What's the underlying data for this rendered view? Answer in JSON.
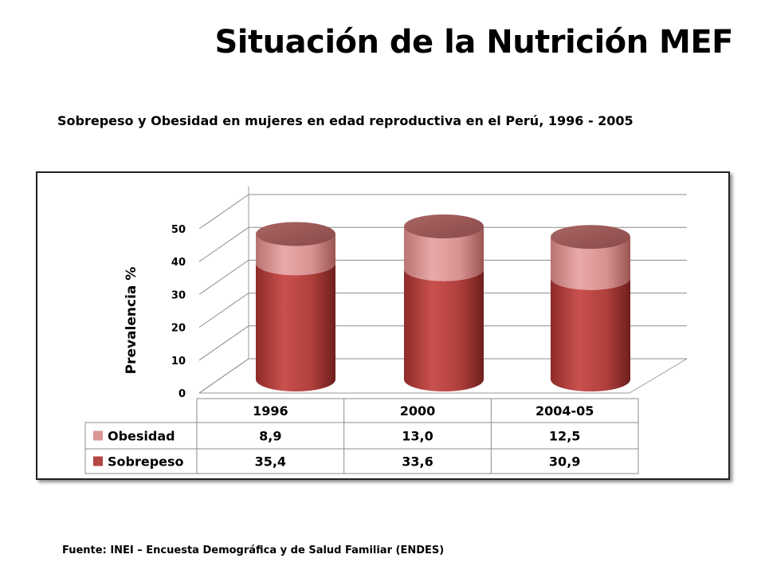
{
  "slide_title": "Situación de la Nutrición MEF",
  "source": "Fuente: INEI – Encuesta Demográfica y de Salud Familiar (ENDES)",
  "chart_data": {
    "type": "bar",
    "stacked": true,
    "style": "3d-cylinder",
    "title": "Sobrepeso y Obesidad en mujeres en edad reproductiva en el Perú, 1996 - 2005",
    "ylabel": "Prevalencia %",
    "xlabel": "",
    "ylim": [
      0,
      50
    ],
    "yticks": [
      0,
      10,
      20,
      30,
      40,
      50
    ],
    "grid": true,
    "legend": "data-table",
    "categories": [
      "1996",
      "2000",
      "2004-05"
    ],
    "series": [
      {
        "name": "Obesidad",
        "values": [
          8.9,
          13.0,
          12.5
        ],
        "display": [
          "8,9",
          "13,0",
          "12,5"
        ],
        "color": "#d99594"
      },
      {
        "name": "Sobrepeso",
        "values": [
          35.4,
          33.6,
          30.9
        ],
        "display": [
          "35,4",
          "33,6",
          "30,9"
        ],
        "color": "#b44643"
      }
    ]
  }
}
